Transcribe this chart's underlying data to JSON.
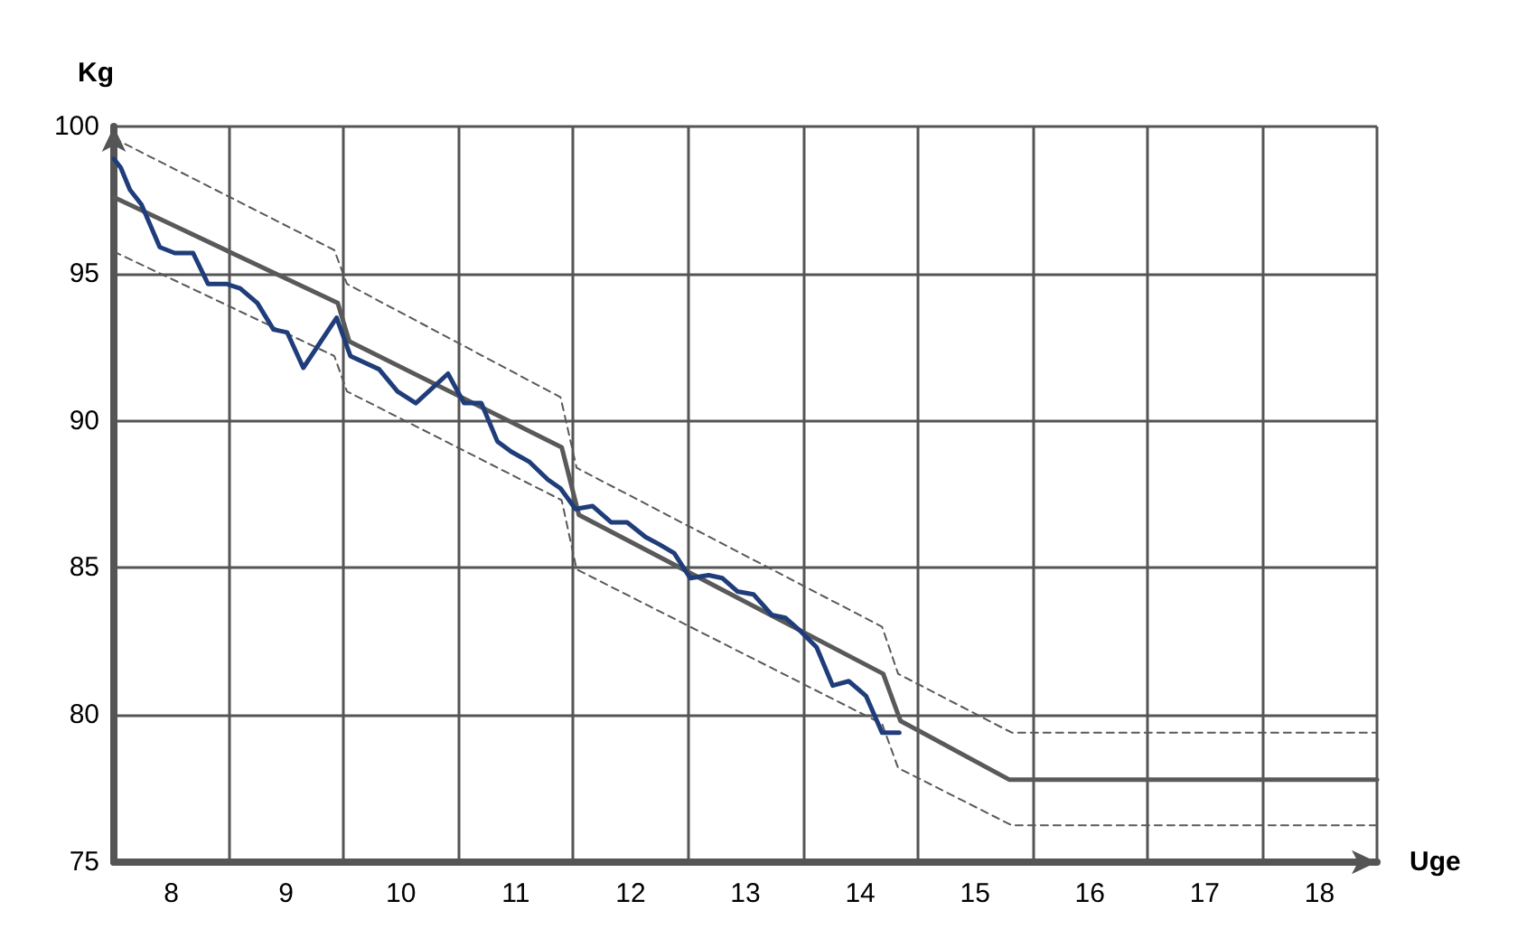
{
  "chart_data": {
    "type": "line",
    "xlabel": "Uge",
    "ylabel": "Kg",
    "xlim": [
      7.5,
      18.5
    ],
    "ylim": [
      75,
      100
    ],
    "xticks": [
      {
        "value": 7.5,
        "label": null
      },
      8,
      {
        "value": 8.5,
        "label": null
      },
      9,
      {
        "value": 9.5,
        "label": null
      },
      10,
      {
        "value": 10.5,
        "label": null
      },
      11,
      {
        "value": 11.5,
        "label": null
      },
      12,
      {
        "value": 12.5,
        "label": null
      },
      13,
      {
        "value": 13.5,
        "label": null
      },
      14,
      {
        "value": 14.5,
        "label": null
      },
      15,
      {
        "value": 15.5,
        "label": null
      },
      16,
      {
        "value": 16.5,
        "label": null
      },
      17,
      {
        "value": 17.5,
        "label": null
      },
      18,
      {
        "value": 18.5,
        "label": null
      }
    ],
    "yticks": [
      75,
      80,
      85,
      90,
      95,
      100
    ],
    "grid": true,
    "marker": "none",
    "series": [
      {
        "color": "#595959",
        "line_style": "dashed",
        "x": [
          7.5,
          9.42,
          9.53,
          11.39,
          11.53,
          14.19,
          14.33,
          15.32,
          18.5
        ],
        "values": [
          99.6,
          95.8,
          94.65,
          90.8,
          88.4,
          83.0,
          81.4,
          79.4,
          79.4
        ]
      },
      {
        "color": "#595959",
        "line_style": "dashed",
        "x": [
          7.5,
          9.42,
          9.53,
          11.4,
          11.53,
          14.19,
          14.33,
          15.32,
          18.5
        ],
        "values": [
          95.75,
          92.2,
          91.0,
          87.3,
          84.95,
          79.7,
          78.2,
          76.25,
          76.25
        ]
      },
      {
        "color": "#595959",
        "line_style": "solid",
        "x": [
          7.5,
          9.45,
          9.55,
          11.4,
          11.55,
          14.2,
          14.35,
          15.3,
          18.5
        ],
        "values": [
          97.6,
          94.0,
          92.7,
          89.1,
          86.8,
          81.4,
          79.8,
          77.8,
          77.8
        ]
      },
      {
        "color": "#1f3d7a",
        "line_style": "solid",
        "x": [
          7.5,
          7.56,
          7.64,
          7.74,
          7.9,
          8.03,
          8.19,
          8.32,
          8.48,
          8.6,
          8.75,
          8.89,
          9.01,
          9.15,
          9.44,
          9.56,
          9.81,
          9.97,
          10.13,
          10.41,
          10.55,
          10.7,
          10.84,
          10.96,
          11.12,
          11.28,
          11.39,
          11.52,
          11.67,
          11.83,
          11.97,
          12.13,
          12.25,
          12.38,
          12.52,
          12.68,
          12.8,
          12.93,
          13.07,
          13.23,
          13.35,
          13.48,
          13.62,
          13.76,
          13.9,
          14.05,
          14.19,
          14.34
        ],
        "values": [
          98.9,
          98.6,
          97.85,
          97.35,
          95.9,
          95.7,
          95.7,
          94.65,
          94.65,
          94.5,
          94.0,
          93.1,
          93.0,
          91.8,
          93.5,
          92.2,
          91.75,
          91.0,
          90.6,
          91.6,
          90.6,
          90.6,
          89.3,
          88.95,
          88.6,
          88.0,
          87.7,
          87.0,
          87.1,
          86.55,
          86.55,
          86.05,
          85.8,
          85.5,
          84.65,
          84.75,
          84.65,
          84.2,
          84.1,
          83.4,
          83.3,
          82.85,
          82.3,
          81.0,
          81.15,
          80.65,
          79.4,
          79.4
        ]
      }
    ]
  }
}
